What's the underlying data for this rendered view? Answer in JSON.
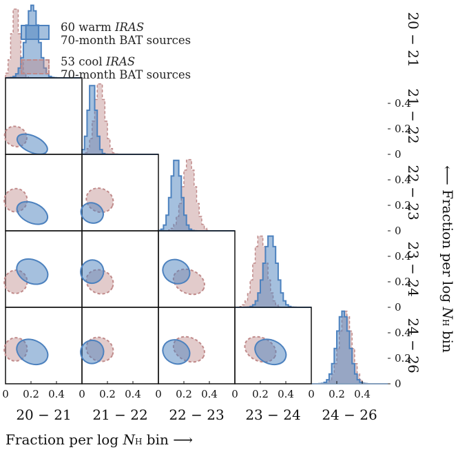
{
  "legend": {
    "warm": {
      "count": "60 warm",
      "catalog": "IRAS",
      "line2": "70-month BAT sources"
    },
    "cool": {
      "count": "53 cool",
      "catalog": "IRAS",
      "line2": "70-month BAT sources"
    }
  },
  "axes": {
    "xlabel_prefix": "Fraction per log ",
    "xlabel_var": "N",
    "xlabel_sub": "H",
    "xlabel_suffix": " bin ⟶",
    "ylabel_prefix": "⟵ Fraction per log ",
    "ylabel_var": "N",
    "ylabel_sub": "H",
    "ylabel_suffix": " bin"
  },
  "colors": {
    "warm": "#4c81be",
    "warm_fill": "rgba(76,129,190,0.5)",
    "cool": "#c08a8a",
    "cool_fill": "rgba(190,140,140,0.45)"
  },
  "chart_data": {
    "type": "corner",
    "bins": [
      "20 − 21",
      "21 − 22",
      "22 − 23",
      "23 − 24",
      "24 − 26"
    ],
    "x_ticks": [
      "0",
      "0.2",
      "0.4"
    ],
    "y_ticks": [
      "0",
      "0.2",
      "0.4"
    ],
    "axis_range": [
      0,
      0.6
    ],
    "series": [
      {
        "name": "60 warm IRAS 70-month BAT sources",
        "key": "warm",
        "median_fraction": [
          0.21,
          0.08,
          0.14,
          0.28,
          0.25
        ],
        "spread": [
          0.05,
          0.03,
          0.04,
          0.05,
          0.05
        ]
      },
      {
        "name": "53 cool IRAS 70-month BAT sources",
        "key": "cool",
        "median_fraction": [
          0.08,
          0.14,
          0.24,
          0.2,
          0.27
        ],
        "spread": [
          0.03,
          0.04,
          0.05,
          0.05,
          0.05
        ]
      }
    ]
  }
}
